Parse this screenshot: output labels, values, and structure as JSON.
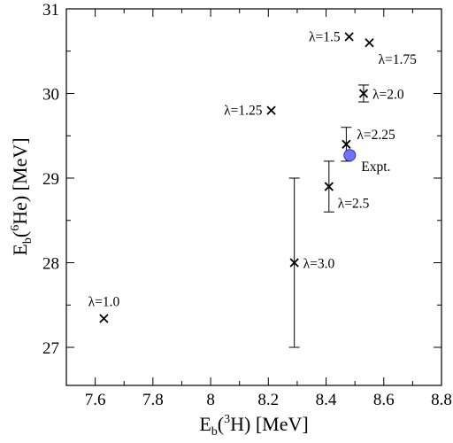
{
  "chart_data": {
    "type": "scatter",
    "title": "",
    "xlabel": {
      "main": "E",
      "sub": "b",
      "open": "(",
      "sup": "3",
      "element": "H",
      "close": ")",
      "unit": " [MeV]"
    },
    "ylabel": {
      "main": "E",
      "sub": "b",
      "open": "(",
      "sup": "6",
      "element": "He",
      "close": ")",
      "unit": " [MeV]"
    },
    "xlim": [
      7.5,
      8.8
    ],
    "ylim": [
      26.55,
      31.0
    ],
    "xticks": [
      7.6,
      7.8,
      8,
      8.2,
      8.4,
      8.6,
      8.8
    ],
    "xtick_labels": [
      "7.6",
      "7.8",
      "8",
      "8.2",
      "8.4",
      "8.6",
      "8.8"
    ],
    "yticks": [
      27,
      28,
      29,
      30,
      31
    ],
    "ytick_labels": [
      "27",
      "28",
      "29",
      "30",
      "31"
    ],
    "grid": false,
    "points": [
      {
        "label": "λ=1.0",
        "x": 7.63,
        "y": 27.34,
        "err": null,
        "label_pos": "above"
      },
      {
        "label": "λ=1.25",
        "x": 8.21,
        "y": 29.8,
        "err": null,
        "label_pos": "left"
      },
      {
        "label": "λ=1.5",
        "x": 8.48,
        "y": 30.67,
        "err": null,
        "label_pos": "left"
      },
      {
        "label": "λ=1.75",
        "x": 8.55,
        "y": 30.6,
        "err": null,
        "label_pos": "right-below"
      },
      {
        "label": "λ=2.0",
        "x": 8.53,
        "y": 30.0,
        "err": 0.1,
        "label_pos": "right"
      },
      {
        "label": "λ=2.25",
        "x": 8.47,
        "y": 29.4,
        "err": 0.2,
        "label_pos": "right-above"
      },
      {
        "label": "λ=2.5",
        "x": 8.41,
        "y": 28.9,
        "err": 0.3,
        "label_pos": "right-below"
      },
      {
        "label": "λ=3.0",
        "x": 8.29,
        "y": 28.0,
        "err": 1.0,
        "label_pos": "right"
      }
    ],
    "experiment": {
      "label": "Expt.",
      "x": 8.482,
      "y": 29.27,
      "color": "#6f74ff",
      "edge": "#2a2fbf"
    }
  }
}
